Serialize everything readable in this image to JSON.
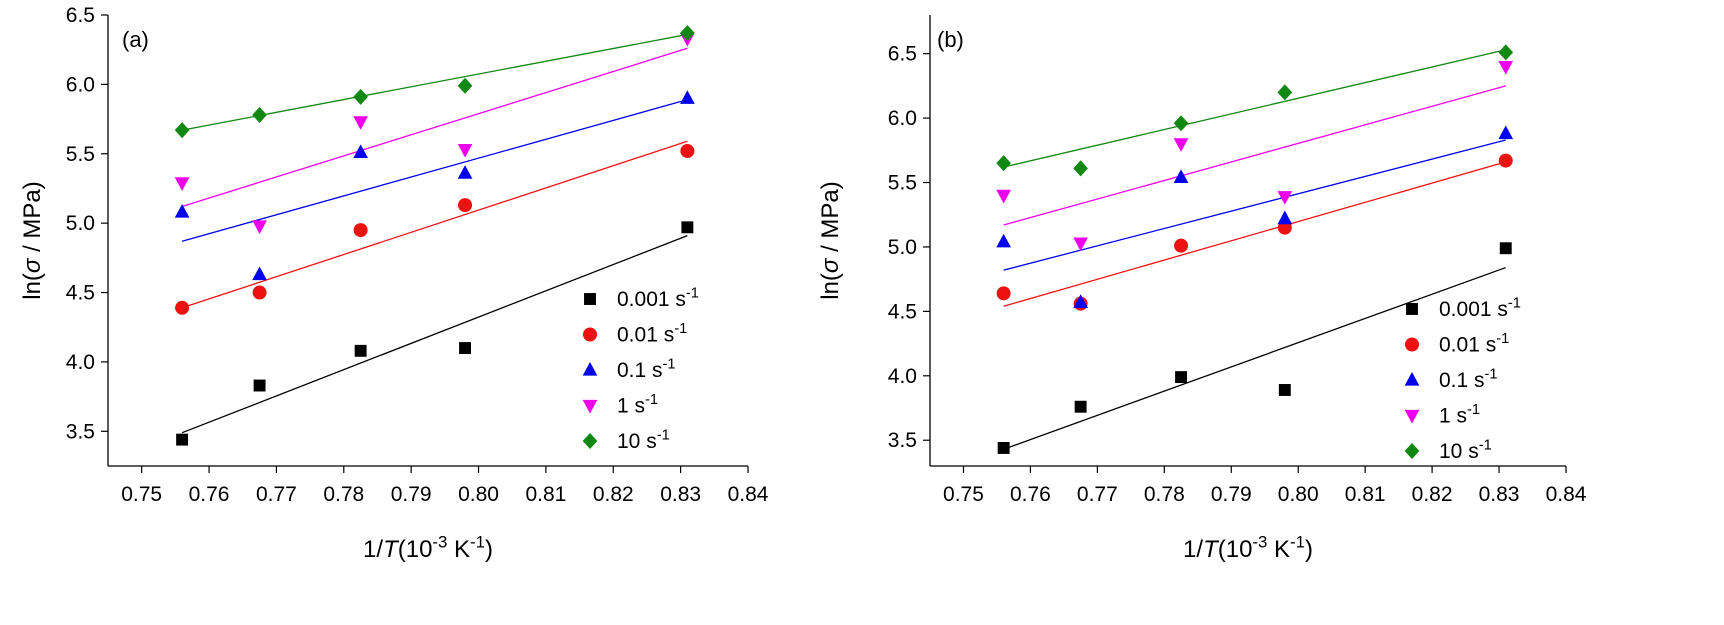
{
  "chart_data": [
    {
      "type": "scatter",
      "panel_label": "(a)",
      "xlabel": "1/T(10^-3 K^-1)",
      "ylabel": "ln(σ / MPa)",
      "xlim": [
        0.745,
        0.84
      ],
      "ylim": [
        3.25,
        6.5
      ],
      "xticks": [
        0.75,
        0.76,
        0.77,
        0.78,
        0.79,
        0.8,
        0.81,
        0.82,
        0.83,
        0.84
      ],
      "xtick_labels": [
        "0.75",
        "0.76",
        "0.77",
        "0.78",
        "0.79",
        "0.80",
        "0.81",
        "0.82",
        "0.83",
        "0.84"
      ],
      "yticks": [
        3.5,
        4.0,
        4.5,
        5.0,
        5.5,
        6.0,
        6.5
      ],
      "ytick_labels": [
        "3.5",
        "4.0",
        "4.5",
        "5.0",
        "5.5",
        "6.0",
        "6.5"
      ],
      "grid": false,
      "legend_position": "bottom-right",
      "series": [
        {
          "name": "0.001 s^-1",
          "marker": "square",
          "color": "#000000",
          "x": [
            0.756,
            0.7675,
            0.7825,
            0.798,
            0.831
          ],
          "y": [
            3.44,
            3.83,
            4.08,
            4.1,
            4.97
          ],
          "fit": [
            [
              0.756,
              3.49
            ],
            [
              0.831,
              4.91
            ]
          ]
        },
        {
          "name": "0.01 s^-1",
          "marker": "circle",
          "color": "#ee1111",
          "x": [
            0.756,
            0.7675,
            0.7825,
            0.798,
            0.831
          ],
          "y": [
            4.39,
            4.5,
            4.95,
            5.13,
            5.52
          ],
          "fit": [
            [
              0.756,
              4.39
            ],
            [
              0.831,
              5.59
            ]
          ]
        },
        {
          "name": "0.1 s^-1",
          "marker": "triangle-up",
          "color": "#0000ee",
          "x": [
            0.756,
            0.7675,
            0.7825,
            0.798,
            0.831
          ],
          "y": [
            5.08,
            4.63,
            5.51,
            5.36,
            5.9
          ],
          "fit": [
            [
              0.756,
              4.87
            ],
            [
              0.831,
              5.89
            ]
          ]
        },
        {
          "name": "1 s^-1",
          "marker": "triangle-down",
          "color": "#ee00ee",
          "x": [
            0.756,
            0.7675,
            0.7825,
            0.798,
            0.831
          ],
          "y": [
            5.29,
            4.98,
            5.73,
            5.53,
            6.33
          ],
          "fit": [
            [
              0.756,
              5.12
            ],
            [
              0.831,
              6.26
            ]
          ]
        },
        {
          "name": "10 s^-1",
          "marker": "diamond",
          "color": "#118811",
          "x": [
            0.756,
            0.7675,
            0.7825,
            0.798,
            0.831
          ],
          "y": [
            5.67,
            5.78,
            5.91,
            5.99,
            6.37
          ],
          "fit": [
            [
              0.756,
              5.67
            ],
            [
              0.831,
              6.36
            ]
          ]
        }
      ]
    },
    {
      "type": "scatter",
      "panel_label": "(b)",
      "xlabel": "1/T(10^-3 K^-1)",
      "ylabel": "ln(σ / MPa)",
      "xlim": [
        0.745,
        0.84
      ],
      "ylim": [
        3.3,
        6.8
      ],
      "xticks": [
        0.75,
        0.76,
        0.77,
        0.78,
        0.79,
        0.8,
        0.81,
        0.82,
        0.83,
        0.84
      ],
      "xtick_labels": [
        "0.75",
        "0.76",
        "0.77",
        "0.78",
        "0.79",
        "0.80",
        "0.81",
        "0.82",
        "0.83",
        "0.84"
      ],
      "yticks": [
        3.5,
        4.0,
        4.5,
        5.0,
        5.5,
        6.0,
        6.5
      ],
      "ytick_labels": [
        "3.5",
        "4.0",
        "4.5",
        "5.0",
        "5.5",
        "6.0",
        "6.5"
      ],
      "grid": false,
      "legend_position": "bottom-right",
      "series": [
        {
          "name": "0.001 s^-1",
          "marker": "square",
          "color": "#000000",
          "x": [
            0.756,
            0.7675,
            0.7825,
            0.798,
            0.831
          ],
          "y": [
            3.44,
            3.76,
            3.99,
            3.89,
            4.99
          ],
          "fit": [
            [
              0.756,
              3.43
            ],
            [
              0.831,
              4.84
            ]
          ]
        },
        {
          "name": "0.01 s^-1",
          "marker": "circle",
          "color": "#ee1111",
          "x": [
            0.756,
            0.7675,
            0.7825,
            0.798,
            0.831
          ],
          "y": [
            4.64,
            4.56,
            5.01,
            5.15,
            5.67
          ],
          "fit": [
            [
              0.756,
              4.54
            ],
            [
              0.831,
              5.66
            ]
          ]
        },
        {
          "name": "0.1 s^-1",
          "marker": "triangle-up",
          "color": "#0000ee",
          "x": [
            0.756,
            0.7675,
            0.7825,
            0.798,
            0.831
          ],
          "y": [
            5.04,
            4.57,
            5.54,
            5.22,
            5.88
          ],
          "fit": [
            [
              0.756,
              4.82
            ],
            [
              0.831,
              5.83
            ]
          ]
        },
        {
          "name": "1 s^-1",
          "marker": "triangle-down",
          "color": "#ee00ee",
          "x": [
            0.756,
            0.7675,
            0.7825,
            0.798,
            0.831
          ],
          "y": [
            5.4,
            5.03,
            5.8,
            5.39,
            6.4
          ],
          "fit": [
            [
              0.756,
              5.17
            ],
            [
              0.831,
              6.25
            ]
          ]
        },
        {
          "name": "10 s^-1",
          "marker": "diamond",
          "color": "#118811",
          "x": [
            0.756,
            0.7675,
            0.7825,
            0.798,
            0.831
          ],
          "y": [
            5.65,
            5.61,
            5.96,
            6.2,
            6.51
          ],
          "fit": [
            [
              0.756,
              5.62
            ],
            [
              0.831,
              6.53
            ]
          ]
        }
      ]
    }
  ]
}
